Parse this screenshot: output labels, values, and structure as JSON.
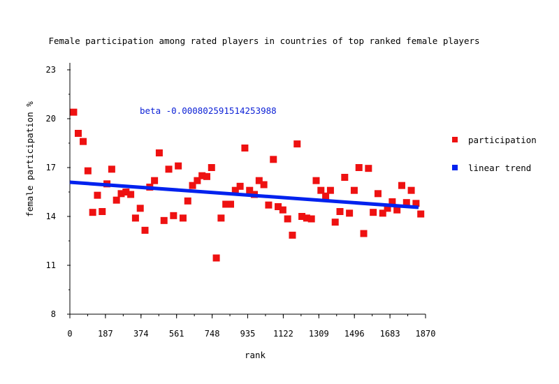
{
  "chart_data": {
    "type": "scatter",
    "title": "Female participation among rated players in countries of top ranked female players",
    "xlabel": "rank",
    "ylabel": "female participation %",
    "xlim": [
      0,
      1870
    ],
    "ylim": [
      8,
      23
    ],
    "xticks": [
      "0",
      "187",
      "374",
      "561",
      "748",
      "935",
      "1122",
      "1309",
      "1496",
      "1683",
      "1870"
    ],
    "yticks": [
      "8",
      "11",
      "14",
      "17",
      "20",
      "23"
    ],
    "grid": false,
    "legend_position": "right",
    "annotation": "beta -0.000802591514253988",
    "colors": {
      "participation": "#ee1111",
      "linear_trend": "#0022ee"
    },
    "series": [
      {
        "name": "participation",
        "kind": "points",
        "points": [
          [
            20,
            20.4
          ],
          [
            44,
            19.1
          ],
          [
            70,
            18.6
          ],
          [
            95,
            16.8
          ],
          [
            120,
            14.25
          ],
          [
            145,
            15.3
          ],
          [
            170,
            14.3
          ],
          [
            195,
            16.0
          ],
          [
            220,
            16.9
          ],
          [
            245,
            15.0
          ],
          [
            270,
            15.4
          ],
          [
            295,
            15.5
          ],
          [
            320,
            15.35
          ],
          [
            345,
            13.9
          ],
          [
            370,
            14.5
          ],
          [
            395,
            13.15
          ],
          [
            420,
            15.8
          ],
          [
            445,
            16.2
          ],
          [
            470,
            17.9
          ],
          [
            495,
            13.75
          ],
          [
            520,
            16.9
          ],
          [
            545,
            14.05
          ],
          [
            570,
            17.1
          ],
          [
            595,
            13.9
          ],
          [
            620,
            14.95
          ],
          [
            645,
            15.9
          ],
          [
            670,
            16.2
          ],
          [
            695,
            16.5
          ],
          [
            720,
            16.45
          ],
          [
            745,
            17.0
          ],
          [
            770,
            11.45
          ],
          [
            795,
            13.9
          ],
          [
            820,
            14.75
          ],
          [
            845,
            14.75
          ],
          [
            870,
            15.6
          ],
          [
            895,
            15.85
          ],
          [
            920,
            18.2
          ],
          [
            945,
            15.6
          ],
          [
            970,
            15.35
          ],
          [
            995,
            16.2
          ],
          [
            1020,
            15.95
          ],
          [
            1045,
            14.7
          ],
          [
            1070,
            17.5
          ],
          [
            1095,
            14.6
          ],
          [
            1120,
            14.4
          ],
          [
            1145,
            13.85
          ],
          [
            1170,
            12.85
          ],
          [
            1195,
            18.45
          ],
          [
            1220,
            14.0
          ],
          [
            1245,
            13.9
          ],
          [
            1270,
            13.85
          ],
          [
            1295,
            16.2
          ],
          [
            1320,
            15.6
          ],
          [
            1345,
            15.25
          ],
          [
            1370,
            15.6
          ],
          [
            1395,
            13.65
          ],
          [
            1420,
            14.3
          ],
          [
            1445,
            16.4
          ],
          [
            1470,
            14.2
          ],
          [
            1495,
            15.6
          ],
          [
            1520,
            17.0
          ],
          [
            1545,
            12.95
          ],
          [
            1570,
            16.95
          ],
          [
            1595,
            14.25
          ],
          [
            1620,
            15.4
          ],
          [
            1645,
            14.2
          ],
          [
            1670,
            14.5
          ],
          [
            1695,
            14.9
          ],
          [
            1720,
            14.4
          ],
          [
            1745,
            15.9
          ],
          [
            1770,
            14.85
          ],
          [
            1795,
            15.6
          ],
          [
            1820,
            14.8
          ],
          [
            1845,
            14.15
          ]
        ]
      },
      {
        "name": "linear trend",
        "kind": "line",
        "points": [
          [
            0,
            16.1
          ],
          [
            1870,
            14.6
          ]
        ]
      }
    ]
  }
}
